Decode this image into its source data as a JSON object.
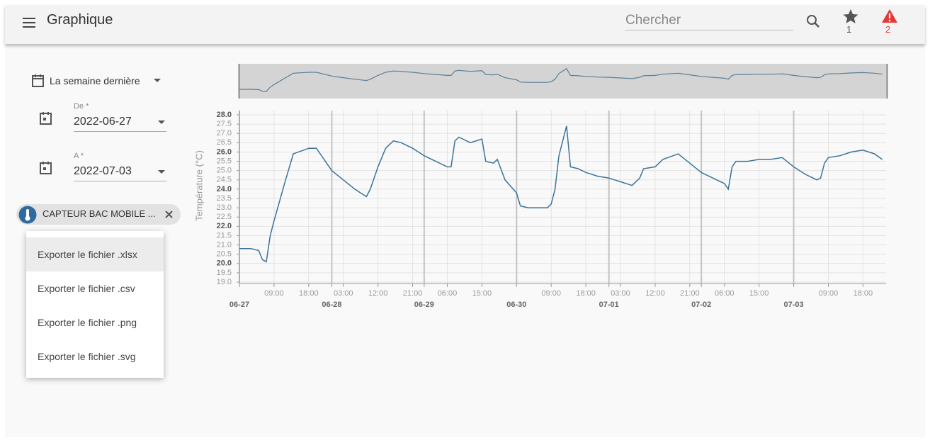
{
  "header": {
    "title": "Graphique",
    "search_placeholder": "Chercher",
    "favorites_count": 1,
    "alerts_count": 2
  },
  "sidebar": {
    "period": "La semaine dernière",
    "from_label": "De *",
    "from_value": "2022-06-27",
    "to_label": "A *",
    "to_value": "2022-07-03",
    "sensor_chip": "CAPTEUR BAC MOBILE ..."
  },
  "export_menu": {
    "items": [
      "Exporter le fichier .xlsx",
      "Exporter le fichier .csv",
      "Exporter le fichier .png",
      "Exporter le fichier .svg"
    ]
  },
  "chart_data": {
    "type": "line",
    "y_label": "Température (°C)",
    "color": "#3b7497",
    "grid": true,
    "xlim": [
      "06-27 00:00",
      "07-04 00:00"
    ],
    "xticks": [
      {
        "value": "06-27 00:00",
        "label": "06-27"
      },
      {
        "value": "06-27 09:00",
        "label": "09:00"
      },
      {
        "value": "06-27 18:00",
        "label": "18:00"
      },
      {
        "value": "06-28 00:00",
        "label": "06-28"
      },
      {
        "value": "06-28 03:00",
        "label": "03:00"
      },
      {
        "value": "06-28 12:00",
        "label": "12:00"
      },
      {
        "value": "06-28 21:00",
        "label": "21:00"
      },
      {
        "value": "06-29 00:00",
        "label": "06-29"
      },
      {
        "value": "06-29 06:00",
        "label": "06:00"
      },
      {
        "value": "06-29 15:00",
        "label": "15:00"
      },
      {
        "value": "06-30 00:00",
        "label": "06-30"
      },
      {
        "value": "06-30 09:00",
        "label": "09:00"
      },
      {
        "value": "06-30 18:00",
        "label": "18:00"
      },
      {
        "value": "07-01 00:00",
        "label": "07-01"
      },
      {
        "value": "07-01 03:00",
        "label": "03:00"
      },
      {
        "value": "07-01 12:00",
        "label": "12:00"
      },
      {
        "value": "07-01 21:00",
        "label": "21:00"
      },
      {
        "value": "07-02 00:00",
        "label": "07-02"
      },
      {
        "value": "07-02 06:00",
        "label": "06:00"
      },
      {
        "value": "07-02 15:00",
        "label": "15:00"
      },
      {
        "value": "07-03 00:00",
        "label": "07-03"
      },
      {
        "value": "07-03 09:00",
        "label": "09:00"
      },
      {
        "value": "07-03 18:00",
        "label": "18:00"
      }
    ],
    "ylim": [
      19,
      28
    ],
    "yticks": [
      {
        "value": 19,
        "label": "19.0"
      },
      19.5,
      {
        "value": 20,
        "label": "20.0"
      },
      20.5,
      {
        "value": 21,
        "label": "21.0"
      },
      21.5,
      {
        "value": 22,
        "label": "22.0"
      },
      22.5,
      {
        "value": 23,
        "label": "23.0"
      },
      23.5,
      {
        "value": 24,
        "label": "24.0"
      },
      24.5,
      {
        "value": 25,
        "label": "25.0"
      },
      25.5,
      {
        "value": 26,
        "label": "26.0"
      },
      26.5,
      {
        "value": 27,
        "label": "27.0"
      },
      27.5,
      {
        "value": 28,
        "label": "28.0"
      }
    ],
    "x": [
      "06-27 00:00",
      "06-27 03:00",
      "06-27 05:00",
      "06-27 06:00",
      "06-27 07:00",
      "06-27 08:00",
      "06-27 09:00",
      "06-27 12:00",
      "06-27 14:00",
      "06-27 18:00",
      "06-27 20:00",
      "06-28 00:00",
      "06-28 03:00",
      "06-28 06:00",
      "06-28 09:00",
      "06-28 10:00",
      "06-28 12:00",
      "06-28 14:00",
      "06-28 16:00",
      "06-28 18:00",
      "06-28 21:00",
      "06-29 00:00",
      "06-29 03:00",
      "06-29 06:00",
      "06-29 07:00",
      "06-29 08:00",
      "06-29 09:00",
      "06-29 12:00",
      "06-29 15:00",
      "06-29 16:00",
      "06-29 18:00",
      "06-29 19:00",
      "06-29 21:00",
      "06-30 00:00",
      "06-30 01:00",
      "06-30 03:00",
      "06-30 06:00",
      "06-30 08:00",
      "06-30 09:00",
      "06-30 10:00",
      "06-30 11:00",
      "06-30 13:00",
      "06-30 14:00",
      "06-30 16:00",
      "06-30 18:00",
      "06-30 21:00",
      "07-01 00:00",
      "07-01 03:00",
      "07-01 06:00",
      "07-01 08:00",
      "07-01 09:00",
      "07-01 12:00",
      "07-01 14:00",
      "07-01 18:00",
      "07-01 21:00",
      "07-02 00:00",
      "07-02 03:00",
      "07-02 06:00",
      "07-02 07:00",
      "07-02 08:00",
      "07-02 09:00",
      "07-02 12:00",
      "07-02 15:00",
      "07-02 18:00",
      "07-02 21:00",
      "07-03 00:00",
      "07-03 03:00",
      "07-03 06:00",
      "07-03 07:00",
      "07-03 08:00",
      "07-03 09:00",
      "07-03 12:00",
      "07-03 15:00",
      "07-03 18:00",
      "07-03 21:00",
      "07-03 23:00"
    ],
    "values": [
      20.8,
      20.8,
      20.7,
      20.2,
      20.1,
      21.5,
      22.3,
      24.5,
      25.9,
      26.2,
      26.2,
      25.0,
      24.5,
      24.0,
      23.6,
      24.0,
      25.2,
      26.2,
      26.6,
      26.5,
      26.2,
      25.8,
      25.5,
      25.2,
      25.2,
      26.6,
      26.8,
      26.5,
      26.7,
      25.5,
      25.4,
      25.6,
      24.5,
      23.8,
      23.1,
      23.0,
      23.0,
      23.0,
      23.2,
      24.0,
      25.8,
      27.4,
      25.2,
      25.1,
      24.9,
      24.7,
      24.6,
      24.4,
      24.2,
      24.6,
      25.1,
      25.2,
      25.6,
      25.9,
      25.4,
      24.9,
      24.6,
      24.3,
      24.0,
      25.2,
      25.5,
      25.5,
      25.6,
      25.6,
      25.7,
      25.2,
      24.8,
      24.5,
      24.6,
      25.4,
      25.7,
      25.8,
      26.0,
      26.1,
      25.9,
      25.6
    ]
  }
}
